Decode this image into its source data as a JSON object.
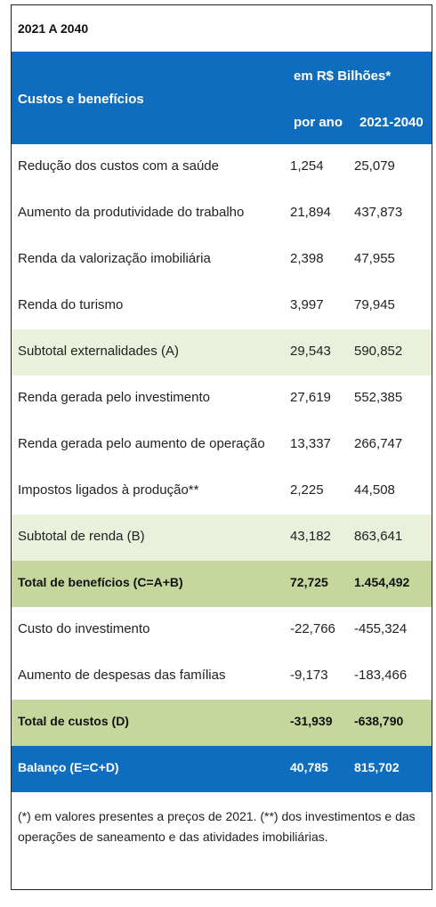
{
  "table": {
    "period_title": "2021 A 2040",
    "header": {
      "label": "Custos e benefícios",
      "unit": "em R$ Bilhões*",
      "col1": "por ano",
      "col2": "2021-2040"
    },
    "rows": [
      {
        "label": "Redução dos custos com a saúde",
        "per_year": "1,254",
        "total": "25,079",
        "style": "normal"
      },
      {
        "label": "Aumento da produtividade do trabalho",
        "per_year": "21,894",
        "total": "437,873",
        "style": "normal"
      },
      {
        "label": "Renda da valorização imobiliária",
        "per_year": "2,398",
        "total": "47,955",
        "style": "normal"
      },
      {
        "label": "Renda do turismo",
        "per_year": "3,997",
        "total": "79,945",
        "style": "normal"
      },
      {
        "label": "Subtotal externalidades (A)",
        "per_year": "29,543",
        "total": "590,852",
        "style": "subtotal"
      },
      {
        "label": "Renda gerada pelo investimento",
        "per_year": "27,619",
        "total": "552,385",
        "style": "normal"
      },
      {
        "label": "Renda gerada pelo aumento de operação",
        "per_year": "13,337",
        "total": "266,747",
        "style": "normal"
      },
      {
        "label": "Impostos ligados à produção**",
        "per_year": "2,225",
        "total": "44,508",
        "style": "normal"
      },
      {
        "label": "Subtotal de renda (B)",
        "per_year": "43,182",
        "total": "863,641",
        "style": "subtotal"
      },
      {
        "label": "Total de benefícios (C=A+B)",
        "per_year": "72,725",
        "total": "1.454,492",
        "style": "total"
      },
      {
        "label": "Custo do investimento",
        "per_year": "-22,766",
        "total": "-455,324",
        "style": "normal"
      },
      {
        "label": "Aumento de despesas das famílias",
        "per_year": "-9,173",
        "total": "-183,466",
        "style": "normal"
      },
      {
        "label": "Total de custos (D)",
        "per_year": "-31,939",
        "total": "-638,790",
        "style": "total"
      },
      {
        "label": "Balanço (E=C+D)",
        "per_year": "40,785",
        "total": "815,702",
        "style": "balance"
      }
    ],
    "footnote": "(*) em valores presentes a preços de 2021. (**) dos investimentos e das operações de saneamento e das atividades imobiliárias."
  },
  "colors": {
    "header_blue": "#0f6dbf",
    "subtotal_green": "#e9f0dc",
    "total_green": "#c6d79d"
  }
}
